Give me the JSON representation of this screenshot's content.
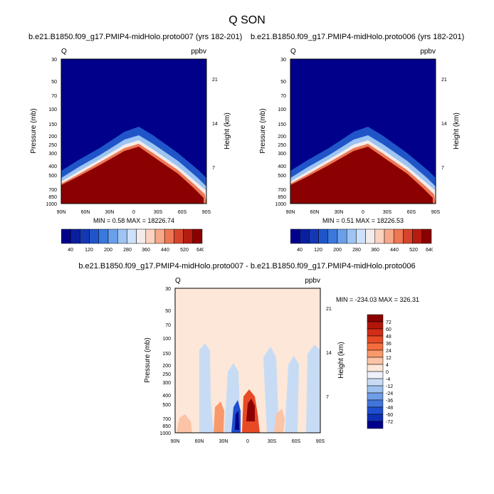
{
  "main_title": "Q SON",
  "panels": [
    {
      "title": "b.e21.B1850.f09_g17.PMIP4-midHolo.proto007 (yrs 182-201)",
      "var_label": "Q",
      "units_label": "ppbv",
      "ylabel": "Pressure (mb)",
      "y2label": "Height (km)",
      "minmax": "MIN =   0.58  MAX = 18226.74"
    },
    {
      "title": "b.e21.B1850.f09_g17.PMIP4-midHolo.proto006 (yrs 182-201)",
      "var_label": "Q",
      "units_label": "ppbv",
      "ylabel": "Pressure (mb)",
      "y2label": "Height (km)",
      "minmax": "MIN =   0.51  MAX = 18226.53"
    },
    {
      "title": "b.e21.B1850.f09_g17.PMIP4-midHolo.proto007 - b.e21.B1850.f09_g17.PMIP4-midHolo.proto006",
      "var_label": "Q",
      "units_label": "ppbv",
      "ylabel": "Pressure (mb)",
      "y2label": "Height (km)",
      "minmax": "MIN = -234.03  MAX = 326.31"
    }
  ],
  "chart_data": [
    {
      "type": "heatmap",
      "x_ticks": [
        "90N",
        "60N",
        "30N",
        "0",
        "30S",
        "60S",
        "90S"
      ],
      "y_ticks": [
        "30",
        "50",
        "70",
        "100",
        "150",
        "200",
        "250",
        "300",
        "400",
        "500",
        "700",
        "850",
        "1000"
      ],
      "y2_ticks": [
        "21",
        "14",
        "7"
      ],
      "ylim": [
        1000,
        30
      ],
      "y_scale": "log",
      "colorbar_labels": [
        "40",
        "120",
        "200",
        "280",
        "360",
        "440",
        "520",
        "640"
      ],
      "colors": [
        "#00008b",
        "#0a1f9e",
        "#1437b4",
        "#1f55c8",
        "#3a79dd",
        "#6aa0ea",
        "#9dc4f3",
        "#cde2fa",
        "#f3ecea",
        "#fcd3c0",
        "#f7a889",
        "#ee7754",
        "#d6452b",
        "#b61c10",
        "#8b0000"
      ],
      "description_of_field": "Low values (deep blue) aloft; values increase sharply toward surface, with a dome peaking near 10N around 300 mb."
    },
    {
      "type": "heatmap",
      "x_ticks": [
        "90N",
        "60N",
        "30N",
        "0",
        "30S",
        "60S",
        "90S"
      ],
      "y_ticks": [
        "30",
        "50",
        "70",
        "100",
        "150",
        "200",
        "250",
        "300",
        "400",
        "500",
        "700",
        "850",
        "1000"
      ],
      "y2_ticks": [
        "21",
        "14",
        "7"
      ],
      "ylim": [
        1000,
        30
      ],
      "y_scale": "log",
      "colorbar_labels": [
        "40",
        "120",
        "200",
        "280",
        "360",
        "440",
        "520",
        "640"
      ],
      "colors": [
        "#00008b",
        "#0a1f9e",
        "#1437b4",
        "#1f55c8",
        "#3a79dd",
        "#6aa0ea",
        "#9dc4f3",
        "#cde2fa",
        "#f3ecea",
        "#fcd3c0",
        "#f7a889",
        "#ee7754",
        "#d6452b",
        "#b61c10",
        "#8b0000"
      ]
    },
    {
      "type": "heatmap",
      "x_ticks": [
        "90N",
        "60N",
        "30N",
        "0",
        "30S",
        "60S",
        "90S"
      ],
      "y_ticks": [
        "30",
        "50",
        "70",
        "100",
        "150",
        "200",
        "250",
        "300",
        "400",
        "500",
        "700",
        "850",
        "1000"
      ],
      "y2_ticks": [
        "21",
        "14",
        "7"
      ],
      "ylim": [
        1000,
        30
      ],
      "y_scale": "log",
      "colorbar_labels": [
        "72",
        "60",
        "48",
        "36",
        "24",
        "12",
        "4",
        "0",
        "-4",
        "-12",
        "-24",
        "-36",
        "-48",
        "-60",
        "-72"
      ],
      "colors": [
        "#8b0000",
        "#b3150b",
        "#d12d17",
        "#e84a25",
        "#f56d3d",
        "#f8996c",
        "#fbc4a6",
        "#fde7d9",
        "#eef1fb",
        "#c7dcf4",
        "#9ec1ee",
        "#6f9de6",
        "#4275dc",
        "#1f4ed0",
        "#0f2fb3",
        "#00008b"
      ]
    }
  ]
}
